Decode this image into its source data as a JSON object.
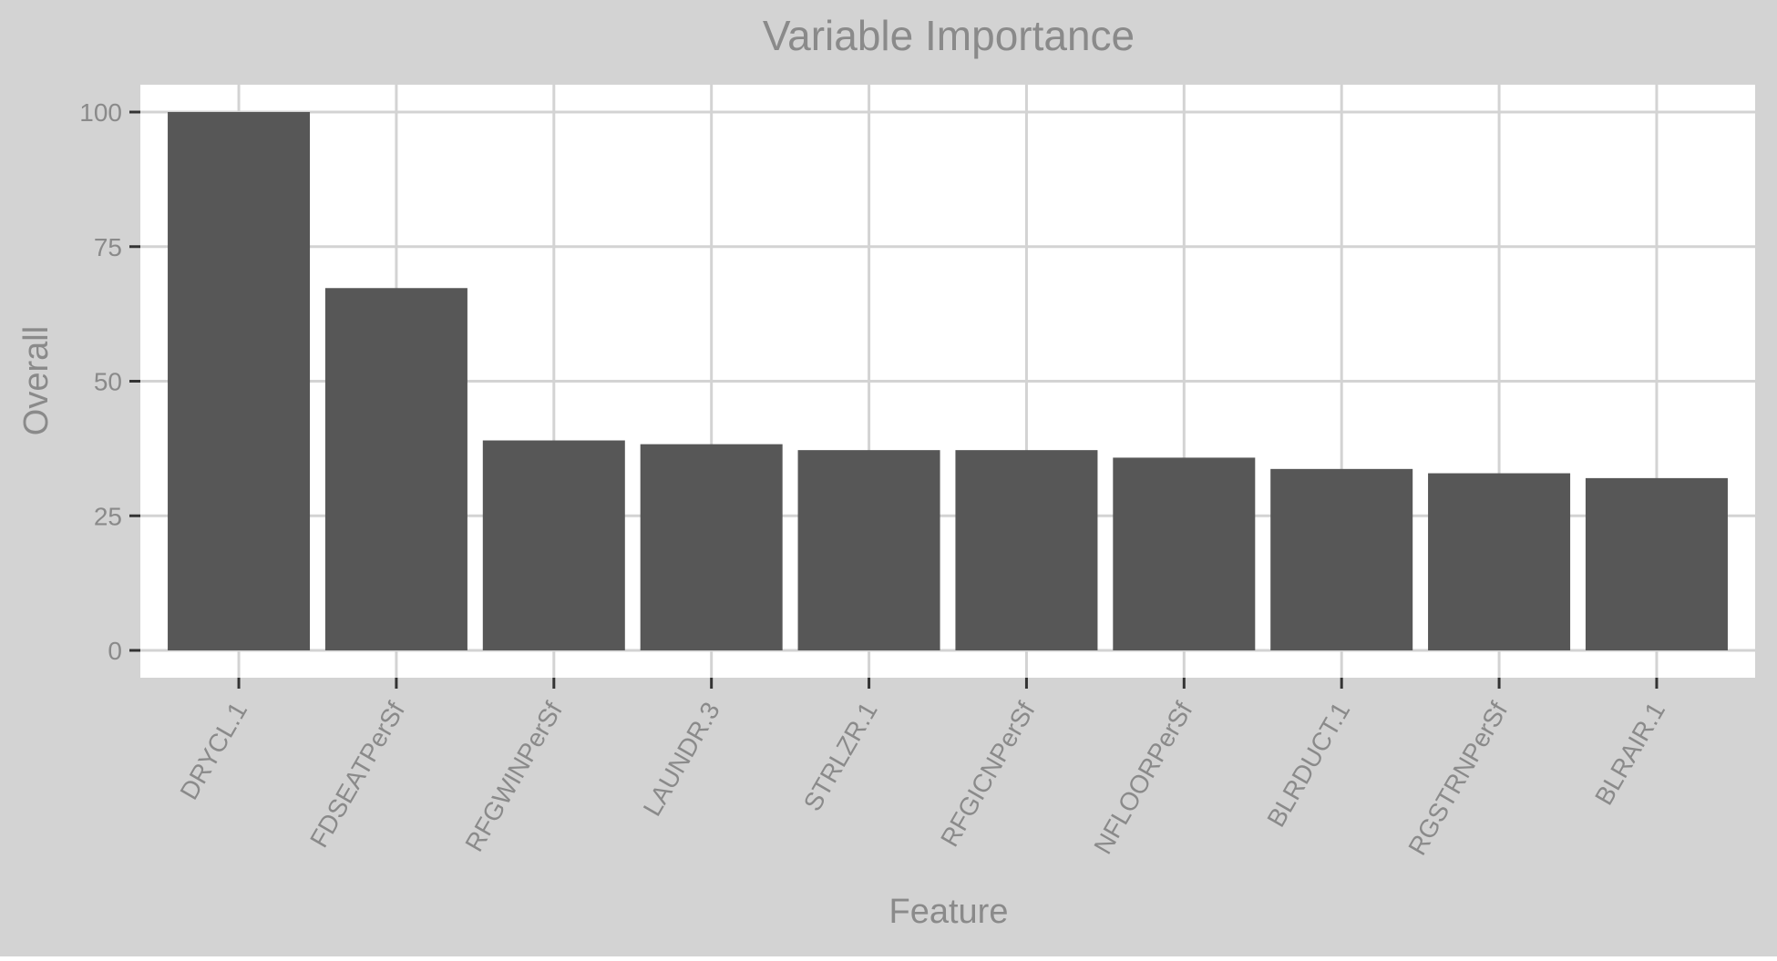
{
  "colors": {
    "outer_background": "#d3d3d3",
    "panel_background": "#ffffff",
    "gridline": "#d3d3d3",
    "bar": "#575757",
    "text": "#8a8a8a",
    "tick": "#333333"
  },
  "chart_data": {
    "type": "bar",
    "title": "Variable Importance",
    "xlabel": "Feature",
    "ylabel": "Overall",
    "categories": [
      "DRYCL.1",
      "FDSEATPerSf",
      "RFGWINPerSf",
      "LAUNDR.3",
      "STRLZR.1",
      "RFGICNPerSf",
      "NFLOORPerSf",
      "BLRDUCT.1",
      "RGSTRNPerSf",
      "BLRAIR.1"
    ],
    "values": [
      100,
      67.3,
      39.0,
      38.3,
      37.2,
      37.2,
      35.8,
      33.7,
      32.9,
      32.0
    ],
    "ylim": [
      0,
      105
    ],
    "yticks": [
      0,
      25,
      50,
      75,
      100
    ],
    "ytick_labels": [
      "0",
      "25",
      "50",
      "75",
      "100"
    ],
    "grid": true,
    "legend": "none"
  }
}
